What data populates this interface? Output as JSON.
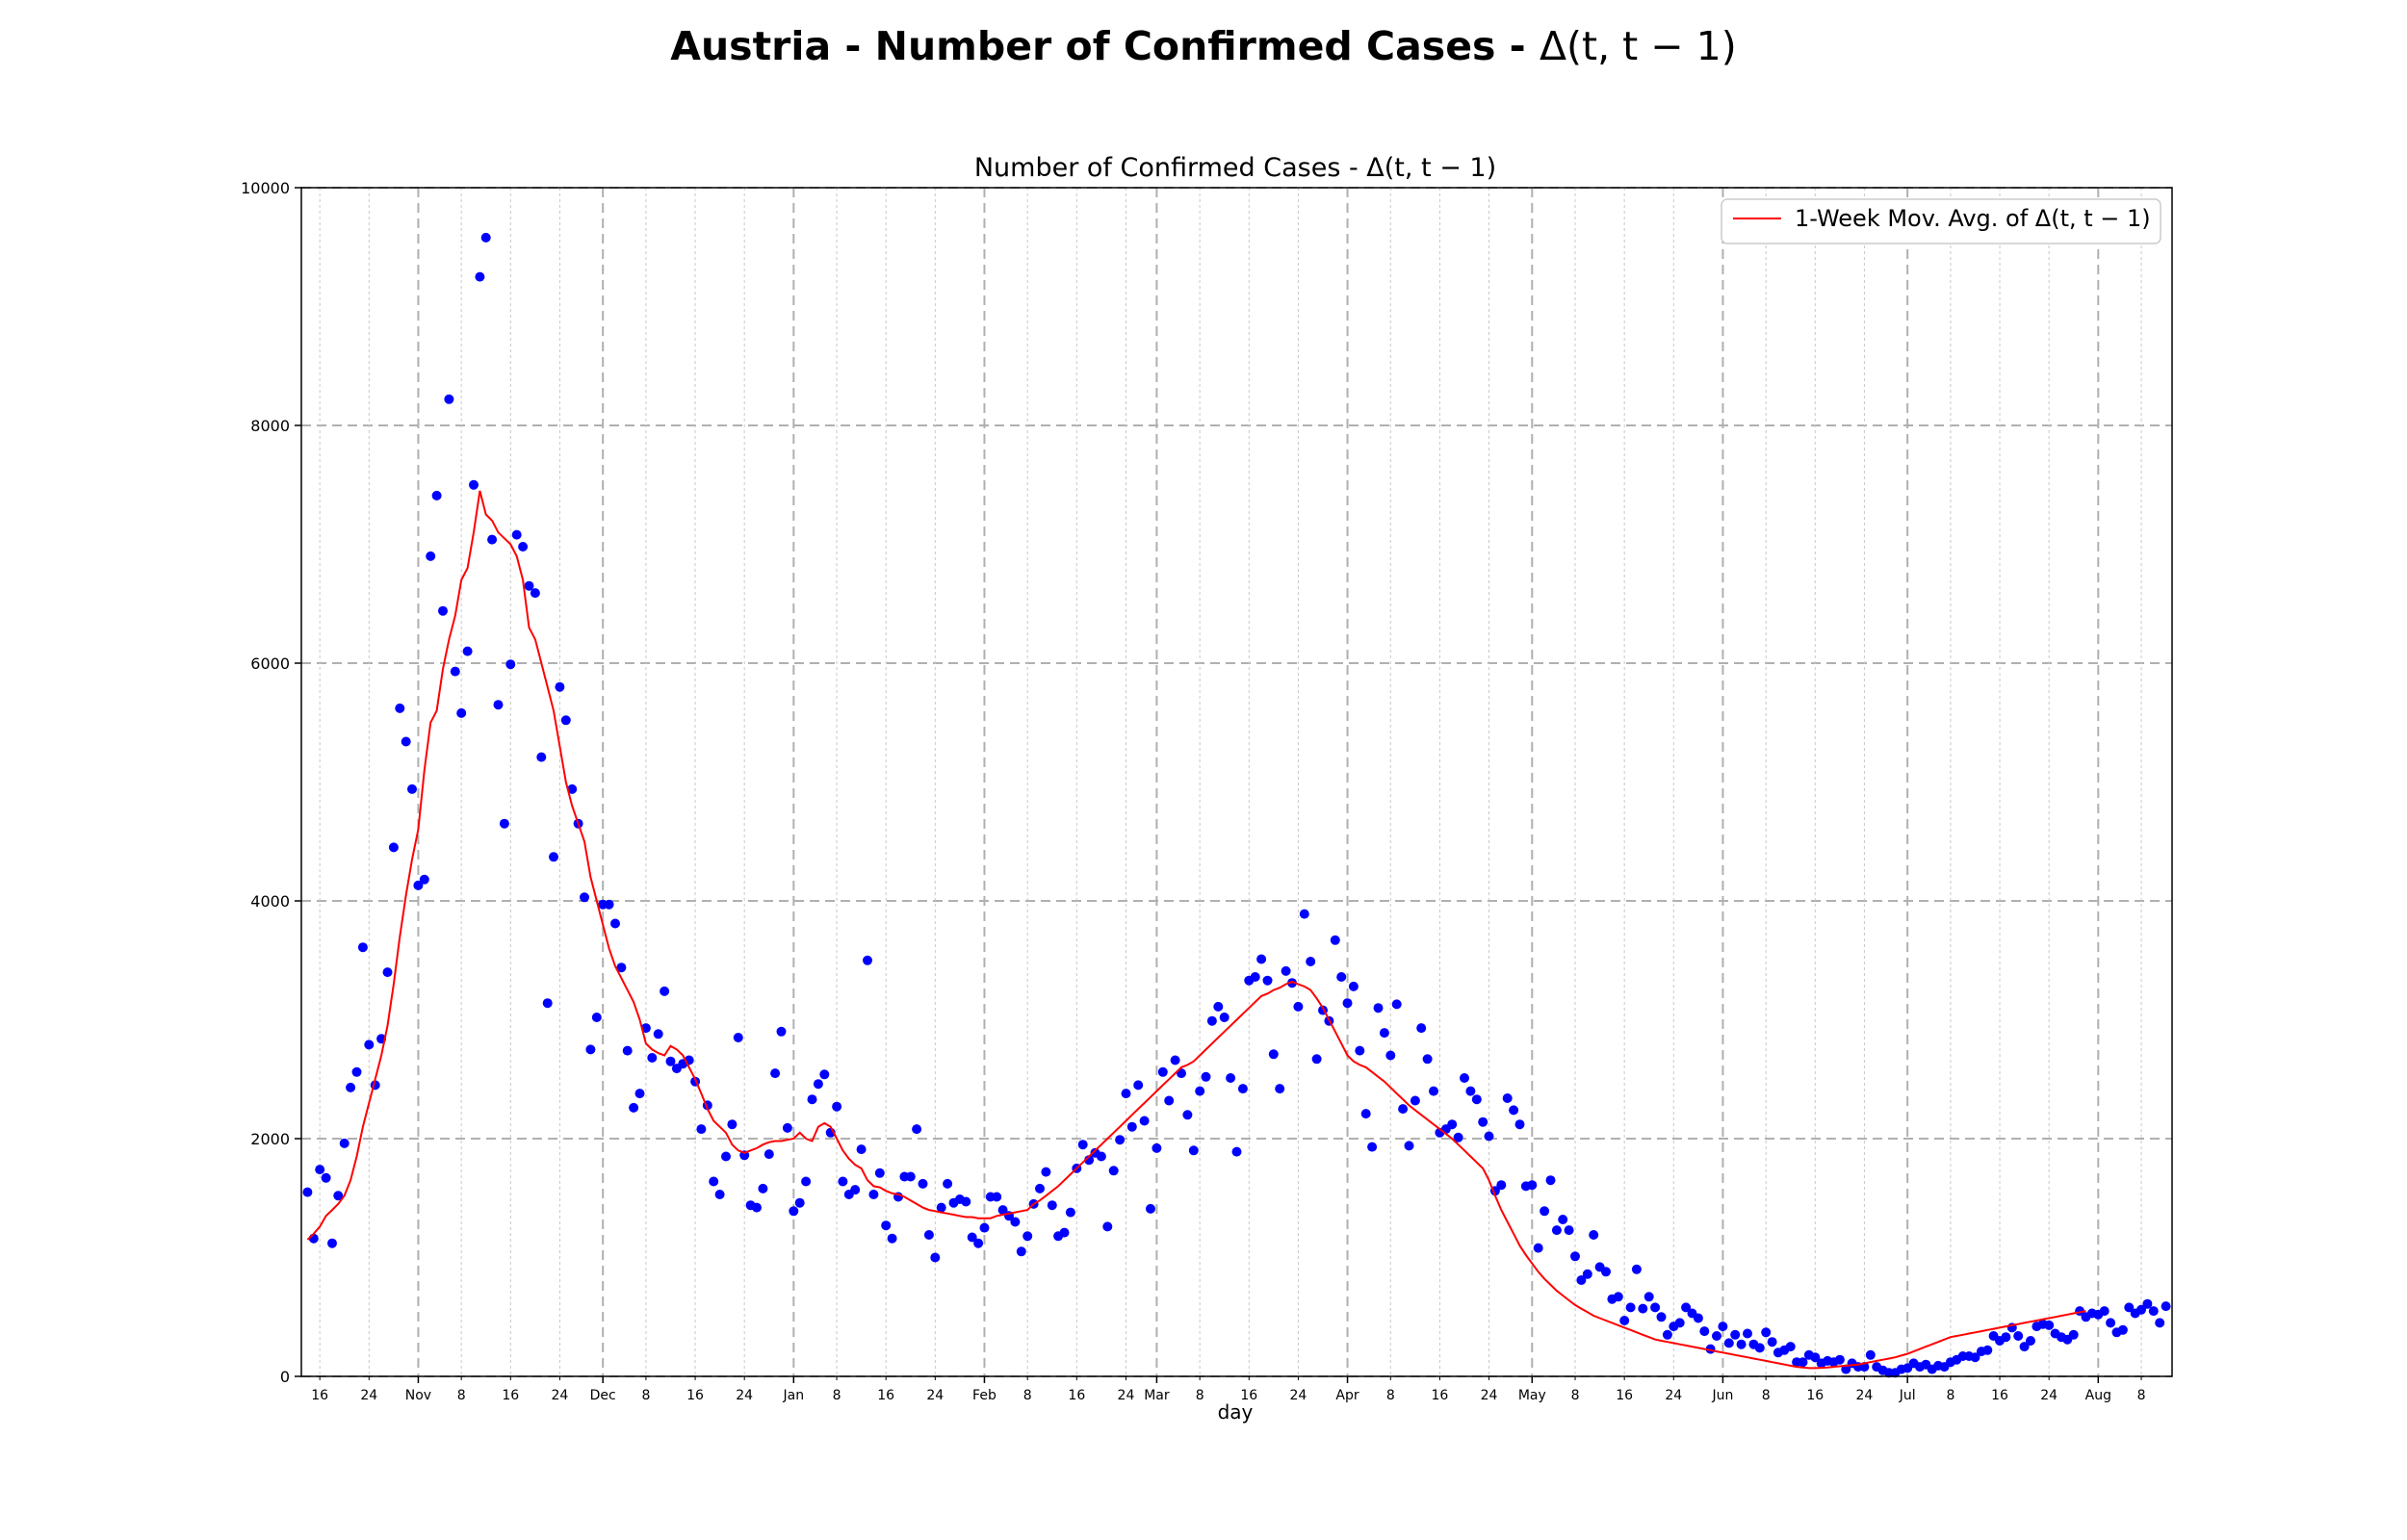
{
  "figure": {
    "title_text": "Austria - Number of Confirmed Cases - ",
    "title_math": "Δ(t, t − 1)"
  },
  "chart_data": {
    "type": "scatter",
    "title": "Number of Confirmed Cases - Δ(t, t − 1)",
    "xlabel": "day",
    "ylabel": "",
    "x_start": "2020-10-14",
    "x_end": "2021-08-11",
    "xlim": [
      "2020-10-13",
      "2021-08-13"
    ],
    "ylim": [
      0,
      10000
    ],
    "y_ticks": [
      0,
      2000,
      4000,
      6000,
      8000,
      10000
    ],
    "x_major_ticks": [
      {
        "date": "2020-11-01",
        "label": "Nov"
      },
      {
        "date": "2020-12-01",
        "label": "Dec"
      },
      {
        "date": "2021-01-01",
        "label": "Jan"
      },
      {
        "date": "2021-02-01",
        "label": "Feb"
      },
      {
        "date": "2021-03-01",
        "label": "Mar"
      },
      {
        "date": "2021-04-01",
        "label": "Apr"
      },
      {
        "date": "2021-05-01",
        "label": "May"
      },
      {
        "date": "2021-06-01",
        "label": "Jun"
      },
      {
        "date": "2021-07-01",
        "label": "Jul"
      },
      {
        "date": "2021-08-01",
        "label": "Aug"
      }
    ],
    "x_minor_tick_days": [
      8,
      16,
      24
    ],
    "grid": true,
    "legend_position": "top-right",
    "colors": {
      "points": "#0000ff",
      "moving_average": "#ff0000",
      "grid": "#b0b0b0"
    },
    "series": [
      {
        "kind": "scatter",
        "values": [
          1550,
          1160,
          1740,
          1670,
          1120,
          1520,
          1960,
          2430,
          2560,
          3610,
          2790,
          2450,
          2840,
          3400,
          4450,
          5620,
          5340,
          4940,
          4130,
          4180,
          6900,
          7410,
          6440,
          8220,
          5930,
          5580,
          6100,
          7500,
          9250,
          9580,
          7040,
          5650,
          4650,
          5990,
          7080,
          6980,
          6650,
          6590,
          5210,
          3140,
          4370,
          5800,
          5520,
          4940,
          4650,
          4030,
          2750,
          3020,
          3970,
          3970,
          3810,
          3440,
          2740,
          2260,
          2380,
          2930,
          2680,
          2880,
          3240,
          2650,
          2590,
          2630,
          2660,
          2480,
          2080,
          2280,
          1640,
          1530,
          1850,
          2120,
          2850,
          1860,
          1440,
          1420,
          1580,
          1870,
          2550,
          2900,
          2090,
          1390,
          1460,
          1640,
          2330,
          2460,
          2540,
          2050,
          2270,
          1640,
          1530,
          1570,
          1910,
          3500,
          1530,
          1710,
          1270,
          1160,
          1510,
          1680,
          1680,
          2080,
          1620,
          1190,
          1000,
          1420,
          1620,
          1460,
          1490,
          1470,
          1170,
          1120,
          1250,
          1510,
          1510,
          1400,
          1350,
          1300,
          1050,
          1180,
          1450,
          1580,
          1720,
          1440,
          1180,
          1210,
          1380,
          1750,
          1950,
          1820,
          1880,
          1850,
          1260,
          1730,
          1990,
          2380,
          2100,
          2450,
          2150,
          1410,
          1920,
          2560,
          2320,
          2660,
          2550,
          2200,
          1900,
          2400,
          2520,
          2990,
          3110,
          3020,
          2510,
          1890,
          2420,
          3330,
          3360,
          3510,
          3330,
          2710,
          2420,
          3410,
          3310,
          3110,
          3890,
          3490,
          2670,
          3080,
          2990,
          3670,
          3360,
          3140,
          3280,
          2740,
          2210,
          1930,
          3100,
          2890,
          2700,
          3130,
          2250,
          1940,
          2320,
          2930,
          2670,
          2400,
          2050,
          2080,
          2120,
          2010,
          2510,
          2400,
          2330,
          2140,
          2020,
          1560,
          1610,
          2340,
          2240,
          2120,
          1600,
          1610,
          1080,
          1390,
          1650,
          1230,
          1320,
          1230,
          1010,
          810,
          860,
          1190,
          920,
          880,
          650,
          670,
          470,
          580,
          900,
          570,
          670,
          580,
          500,
          350,
          420,
          450,
          580,
          530,
          490,
          380,
          230,
          340,
          420,
          280,
          350,
          270,
          360,
          270,
          240,
          370,
          290,
          200,
          220,
          250,
          120,
          120,
          180,
          160,
          110,
          130,
          120,
          140,
          60,
          110,
          80,
          80,
          180,
          80,
          50,
          30,
          30,
          60,
          70,
          110,
          80,
          100,
          60,
          90,
          80,
          120,
          140,
          170,
          170,
          160,
          210,
          220,
          340,
          300,
          330,
          410,
          340,
          250,
          300,
          420,
          440,
          430,
          360,
          330,
          310,
          350,
          550,
          500,
          530,
          520,
          550,
          450,
          370,
          390,
          580,
          530,
          560,
          610,
          550,
          450,
          590
        ]
      },
      {
        "kind": "line",
        "name": "1-Week Mov. Avg. of Δ(t, t − 1)",
        "values": [
          1150,
          1200,
          1260,
          1350,
          1400,
          1450,
          1520,
          1650,
          1850,
          2100,
          2300,
          2500,
          2700,
          2950,
          3300,
          3700,
          4050,
          4350,
          4600,
          5100,
          5500,
          5600,
          5950,
          6200,
          6400,
          6700,
          6800,
          7100,
          7450,
          7250,
          7200,
          7100,
          7050,
          7000,
          6900,
          6700,
          6300,
          6200,
          6000,
          5800,
          5600,
          5300,
          5000,
          4800,
          4650,
          4500,
          4200,
          4000,
          3800,
          3600,
          3450,
          3350,
          3250,
          3150,
          3000,
          2800,
          2750,
          2720,
          2700,
          2780,
          2750,
          2700,
          2600,
          2500,
          2380,
          2250,
          2150,
          2100,
          2050,
          1950,
          1900,
          1880,
          1900,
          1920,
          1950,
          1970,
          1980,
          1980,
          1990,
          2000,
          2050,
          2000,
          1980,
          2100,
          2130,
          2100,
          2000,
          1900,
          1830,
          1780,
          1750,
          1650,
          1600,
          1590,
          1560,
          1540,
          1530,
          1510,
          1480,
          1450,
          1420,
          1400,
          1390,
          1380,
          1370,
          1360,
          1350,
          1340,
          1340,
          1330,
          1330,
          1330,
          1350,
          1360,
          1370,
          1380,
          1390,
          1400,
          1450,
          1480,
          1520,
          1560,
          1600,
          1650,
          1700,
          1750,
          1800,
          1850,
          1900,
          1950,
          2000,
          2050,
          2100,
          2150,
          2200,
          2250,
          2300,
          2350,
          2400,
          2450,
          2500,
          2550,
          2600,
          2620,
          2650,
          2700,
          2750,
          2800,
          2850,
          2900,
          2950,
          3000,
          3050,
          3100,
          3150,
          3200,
          3220,
          3250,
          3270,
          3300,
          3320,
          3300,
          3280,
          3250,
          3180,
          3100,
          3000,
          2900,
          2800,
          2700,
          2650,
          2620,
          2600,
          2560,
          2520,
          2480,
          2430,
          2380,
          2330,
          2280,
          2240,
          2200,
          2160,
          2120,
          2080,
          2040,
          2000,
          1950,
          1900,
          1850,
          1800,
          1750,
          1650,
          1520,
          1400,
          1300,
          1200,
          1100,
          1020,
          950,
          880,
          820,
          770,
          720,
          680,
          640,
          600,
          570,
          540,
          510,
          490,
          470,
          450,
          430,
          410,
          390,
          370,
          350,
          330,
          310,
          300,
          290,
          280,
          270,
          260,
          250,
          240,
          230,
          220,
          210,
          200,
          190,
          180,
          170,
          160,
          150,
          140,
          130,
          120,
          110,
          100,
          90,
          80,
          75,
          70,
          70,
          72,
          75,
          80,
          85,
          90,
          95,
          100,
          110,
          120,
          130,
          140,
          150,
          160,
          175,
          190,
          210,
          230,
          250,
          270,
          290,
          310,
          330,
          340,
          350,
          360,
          370,
          380,
          390,
          400,
          410,
          420,
          430,
          440,
          450,
          460,
          470,
          480,
          490,
          500,
          510,
          520,
          530,
          540,
          550
        ]
      }
    ]
  }
}
